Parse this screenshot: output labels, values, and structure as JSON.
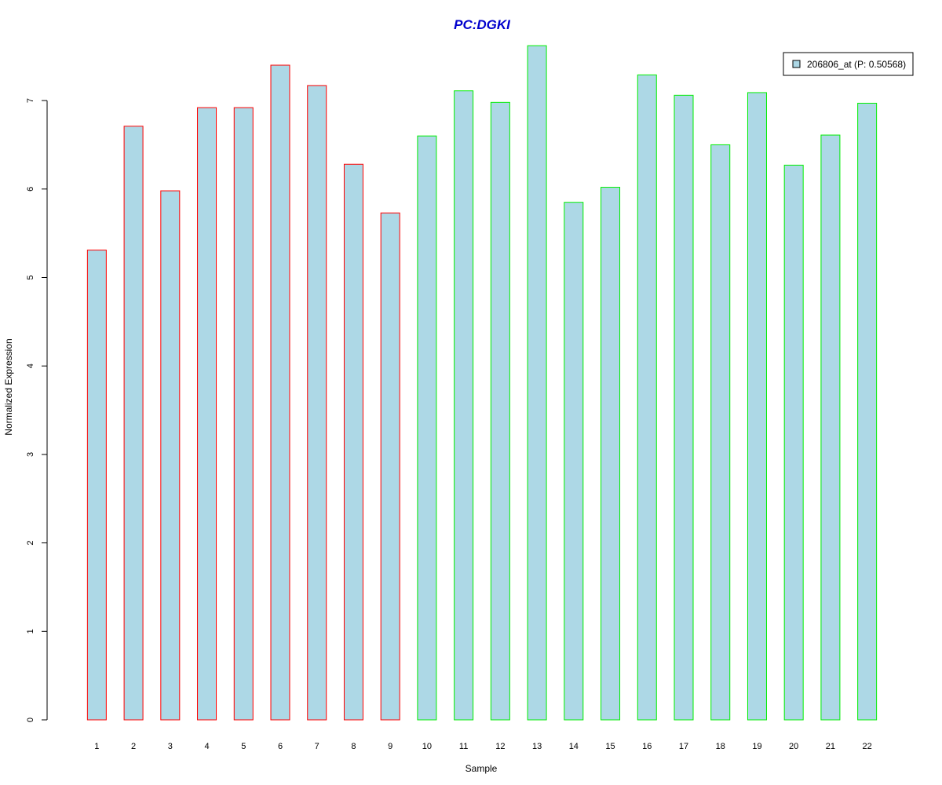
{
  "chart_data": {
    "type": "bar",
    "title": "PC:DGKI",
    "xlabel": "Sample",
    "ylabel": "Normalized Expression",
    "categories": [
      "1",
      "2",
      "3",
      "4",
      "5",
      "6",
      "7",
      "8",
      "9",
      "10",
      "11",
      "12",
      "13",
      "14",
      "15",
      "16",
      "17",
      "18",
      "19",
      "20",
      "21",
      "22"
    ],
    "series": [
      {
        "name": "206806_at (P: 0.50568)",
        "values": [
          5.31,
          6.71,
          5.98,
          6.92,
          6.92,
          7.4,
          7.17,
          6.28,
          5.73,
          6.6,
          7.11,
          6.98,
          7.62,
          5.85,
          6.02,
          7.29,
          7.06,
          6.5,
          7.09,
          6.27,
          6.61,
          6.97
        ]
      }
    ],
    "group_border_colors": [
      "#ff0000",
      "#ff0000",
      "#ff0000",
      "#ff0000",
      "#ff0000",
      "#ff0000",
      "#ff0000",
      "#ff0000",
      "#ff0000",
      "#00ee00",
      "#00ee00",
      "#00ee00",
      "#00ee00",
      "#00ee00",
      "#00ee00",
      "#00ee00",
      "#00ee00",
      "#00ee00",
      "#00ee00",
      "#00ee00",
      "#00ee00",
      "#00ee00"
    ],
    "ylim": [
      0,
      7.62
    ],
    "yticks": [
      0,
      1,
      2,
      3,
      4,
      5,
      6,
      7
    ],
    "legend_placement": "top-right",
    "grid": false
  },
  "colors": {
    "bar_fill": "#add8e6",
    "title": "#0000cd",
    "axis": "#000000"
  }
}
